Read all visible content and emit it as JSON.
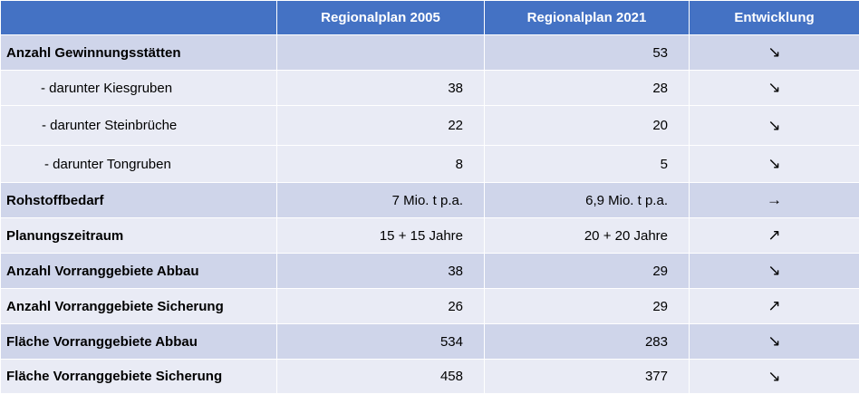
{
  "table": {
    "headers": [
      "",
      "Regionalplan 2005",
      "Regionalplan 2021",
      "Entwicklung"
    ],
    "rows": [
      {
        "label": "Anzahl Gewinnungsstätten",
        "v2005": "",
        "v2021": "53",
        "trend": "↘",
        "trend_icon": "arrow-down-right"
      },
      {
        "label": "- darunter Kiesgruben",
        "v2005": "38",
        "v2021": "28",
        "trend": "↘",
        "trend_icon": "arrow-down-right"
      },
      {
        "label": "- darunter Steinbrüche",
        "v2005": "22",
        "v2021": "20",
        "trend": "↘",
        "trend_icon": "arrow-down-right"
      },
      {
        "label": "- darunter Tongruben",
        "v2005": "8",
        "v2021": "5",
        "trend": "↘",
        "trend_icon": "arrow-down-right"
      },
      {
        "label": "Rohstoffbedarf",
        "v2005": "7 Mio. t p.a.",
        "v2021": "6,9 Mio. t p.a.",
        "trend": "→",
        "trend_icon": "arrow-right"
      },
      {
        "label": "Planungszeitraum",
        "v2005": "15 + 15 Jahre",
        "v2021": "20 + 20 Jahre",
        "trend": "↗",
        "trend_icon": "arrow-up-right"
      },
      {
        "label": "Anzahl Vorranggebiete Abbau",
        "v2005": "38",
        "v2021": "29",
        "trend": "↘",
        "trend_icon": "arrow-down-right"
      },
      {
        "label": "Anzahl Vorranggebiete Sicherung",
        "v2005": "26",
        "v2021": "29",
        "trend": "↗",
        "trend_icon": "arrow-up-right"
      },
      {
        "label": "Fläche Vorranggebiete Abbau",
        "v2005": "534",
        "v2021": "283",
        "trend": "↘",
        "trend_icon": "arrow-down-right"
      },
      {
        "label": "Fläche Vorranggebiete Sicherung",
        "v2005": "458",
        "v2021": "377",
        "trend": "↘",
        "trend_icon": "arrow-down-right"
      }
    ]
  },
  "colors": {
    "header": "#4472c4",
    "band_dark": "#cfd5ea",
    "band_light": "#e9ebf5"
  }
}
